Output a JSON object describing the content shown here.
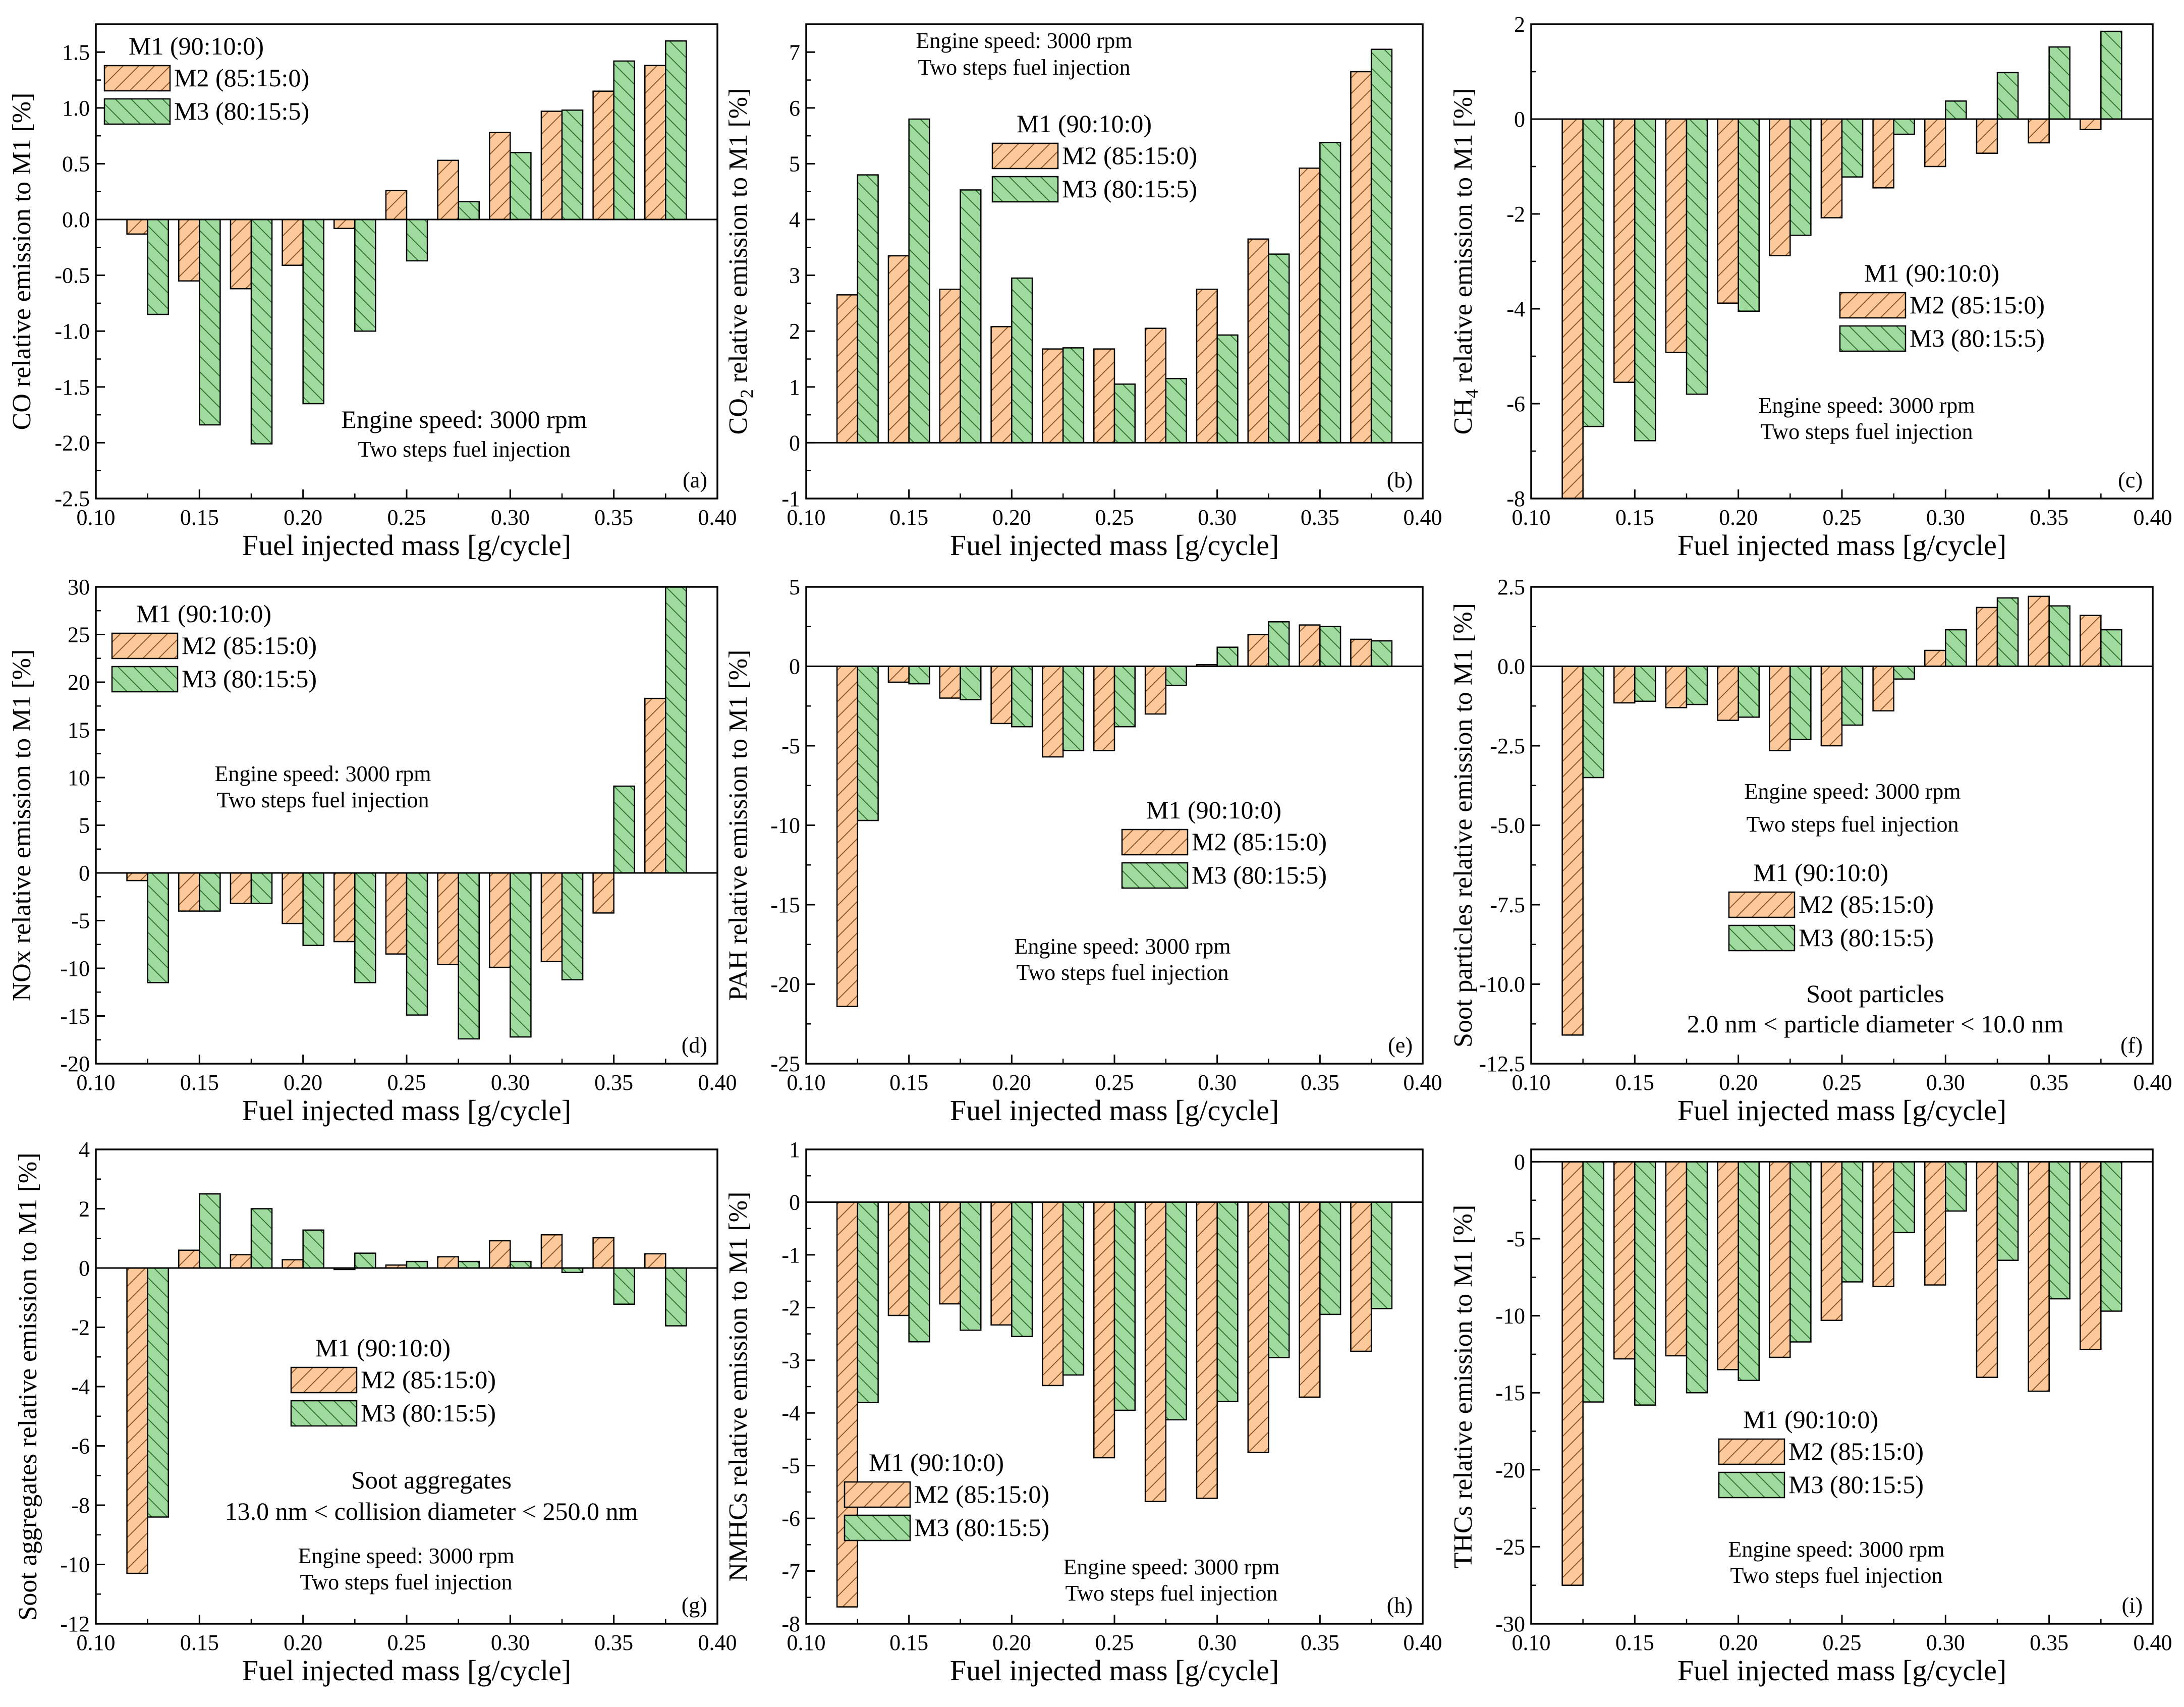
{
  "colors": {
    "m2_fill": "#fbc99a",
    "m2_hatch": "#8a4a20",
    "m3_fill": "#9fdb9f",
    "m3_hatch": "#2a6a2a",
    "axis": "#000000"
  },
  "chart_data": [
    {
      "id": "a",
      "panel_label": "(a)",
      "type": "bar",
      "xlabel": "Fuel injected mass  [g/cycle]",
      "ylabel": "CO relative emission to M1 [%]",
      "ylabel_sub": "",
      "xlim": [
        0.1,
        0.4
      ],
      "xticks": [
        "0.10",
        "0.15",
        "0.20",
        "0.25",
        "0.30",
        "0.35",
        "0.40"
      ],
      "ylim": [
        -2.5,
        1.75
      ],
      "yticks": [
        "-2.5",
        "-2.0",
        "-1.5",
        "-1.0",
        "-0.5",
        "0.0",
        "0.5",
        "1.0",
        "1.5"
      ],
      "ytick_values": [
        -2.5,
        -2.0,
        -1.5,
        -1.0,
        -0.5,
        0.0,
        0.5,
        1.0,
        1.5
      ],
      "x": [
        0.125,
        0.15,
        0.175,
        0.2,
        0.225,
        0.25,
        0.275,
        0.3,
        0.325,
        0.35,
        0.375
      ],
      "series": [
        {
          "name": "M2 (85:15:0)",
          "values": [
            -0.13,
            -0.55,
            -0.62,
            -0.41,
            -0.08,
            0.26,
            0.53,
            0.78,
            0.97,
            1.15,
            1.38
          ]
        },
        {
          "name": "M3 (80:15:5)",
          "values": [
            -0.85,
            -1.84,
            -2.01,
            -1.65,
            -1.0,
            -0.37,
            0.16,
            0.6,
            0.98,
            1.42,
            1.6
          ]
        }
      ],
      "legend": [
        "M1 (90:10:0)",
        "M2 (85:15:0)",
        "M3 (80:15:5)"
      ],
      "annotations": [
        "Engine speed: 3000 rpm",
        "Two steps fuel injection"
      ]
    },
    {
      "id": "b",
      "panel_label": "(b)",
      "type": "bar",
      "xlabel": "Fuel injected mass  [g/cycle]",
      "ylabel": "CO",
      "ylabel_sub": "2",
      "ylabel_rest": " relative emission to M1 [%]",
      "xlim": [
        0.1,
        0.4
      ],
      "xticks": [
        "0.10",
        "0.15",
        "0.20",
        "0.25",
        "0.30",
        "0.35",
        "0.40"
      ],
      "ylim": [
        -1,
        7.5
      ],
      "yticks": [
        "-1",
        "0",
        "1",
        "2",
        "3",
        "4",
        "5",
        "6",
        "7"
      ],
      "ytick_values": [
        -1,
        0,
        1,
        2,
        3,
        4,
        5,
        6,
        7
      ],
      "x": [
        0.125,
        0.15,
        0.175,
        0.2,
        0.225,
        0.25,
        0.275,
        0.3,
        0.325,
        0.35,
        0.375
      ],
      "series": [
        {
          "name": "M2 (85:15:0)",
          "values": [
            2.65,
            3.35,
            2.75,
            2.08,
            1.68,
            1.68,
            2.05,
            2.75,
            3.65,
            4.92,
            6.65
          ]
        },
        {
          "name": "M3 (80:15:5)",
          "values": [
            4.8,
            5.8,
            4.53,
            2.95,
            1.7,
            1.05,
            1.15,
            1.93,
            3.38,
            5.38,
            7.05
          ]
        }
      ],
      "legend": [
        "M1 (90:10:0)",
        "M2 (85:15:0)",
        "M3 (80:15:5)"
      ],
      "annotations": [
        "Engine speed: 3000 rpm",
        "Two steps fuel injection"
      ]
    },
    {
      "id": "c",
      "panel_label": "(c)",
      "type": "bar",
      "xlabel": "Fuel injected mass  [g/cycle]",
      "ylabel": "CH",
      "ylabel_sub": "4",
      "ylabel_rest": " relative emission to M1 [%]",
      "xlim": [
        0.1,
        0.4
      ],
      "xticks": [
        "0.10",
        "0.15",
        "0.20",
        "0.25",
        "0.30",
        "0.35",
        "0.40"
      ],
      "ylim": [
        -8,
        2
      ],
      "yticks": [
        "-8",
        "-6",
        "-4",
        "-2",
        "0",
        "2"
      ],
      "ytick_values": [
        -8,
        -6,
        -4,
        -2,
        0,
        2
      ],
      "x": [
        0.125,
        0.15,
        0.175,
        0.2,
        0.225,
        0.25,
        0.275,
        0.3,
        0.325,
        0.35,
        0.375
      ],
      "series": [
        {
          "name": "M2 (85:15:0)",
          "values": [
            -8.0,
            -5.55,
            -4.92,
            -3.88,
            -2.88,
            -2.08,
            -1.45,
            -1.0,
            -0.72,
            -0.5,
            -0.22
          ]
        },
        {
          "name": "M3 (80:15:5)",
          "values": [
            -6.48,
            -6.78,
            -5.8,
            -4.05,
            -2.45,
            -1.22,
            -0.32,
            0.38,
            0.98,
            1.52,
            1.85
          ]
        }
      ],
      "legend": [
        "M1 (90:10:0)",
        "M2 (85:15:0)",
        "M3 (80:15:5)"
      ],
      "annotations": [
        "Engine speed: 3000 rpm",
        "Two steps fuel injection"
      ]
    },
    {
      "id": "d",
      "panel_label": "(d)",
      "type": "bar",
      "xlabel": "Fuel injected mass  [g/cycle]",
      "ylabel": "NOx relative emission to M1 [%]",
      "ylabel_sub": "",
      "xlim": [
        0.1,
        0.4
      ],
      "xticks": [
        "0.10",
        "0.15",
        "0.20",
        "0.25",
        "0.30",
        "0.35",
        "0.40"
      ],
      "ylim": [
        -20,
        30
      ],
      "yticks": [
        "-20",
        "-15",
        "-10",
        "-5",
        "0",
        "5",
        "10",
        "15",
        "20",
        "25",
        "30"
      ],
      "ytick_values": [
        -20,
        -15,
        -10,
        -5,
        0,
        5,
        10,
        15,
        20,
        25,
        30
      ],
      "x": [
        0.125,
        0.15,
        0.175,
        0.2,
        0.225,
        0.25,
        0.275,
        0.3,
        0.325,
        0.35,
        0.375
      ],
      "series": [
        {
          "name": "M2 (85:15:0)",
          "values": [
            -0.8,
            -4.0,
            -3.2,
            -5.3,
            -7.2,
            -8.5,
            -9.6,
            -9.9,
            -9.3,
            -4.2,
            18.3
          ]
        },
        {
          "name": "M3 (80:15:5)",
          "values": [
            -11.5,
            -4.0,
            -3.2,
            -7.6,
            -11.5,
            -14.9,
            -17.4,
            -17.2,
            -11.2,
            9.1,
            30.0
          ]
        }
      ],
      "legend": [
        "M1 (90:10:0)",
        "M2 (85:15:0)",
        "M3 (80:15:5)"
      ],
      "annotations": [
        "Engine speed: 3000 rpm",
        "Two steps fuel injection"
      ]
    },
    {
      "id": "e",
      "panel_label": "(e)",
      "type": "bar",
      "xlabel": "Fuel injected mass  [g/cycle]",
      "ylabel": "PAH relative emission to M1 [%]",
      "ylabel_sub": "",
      "xlim": [
        0.1,
        0.4
      ],
      "xticks": [
        "0.10",
        "0.15",
        "0.20",
        "0.25",
        "0.30",
        "0.35",
        "0.40"
      ],
      "ylim": [
        -25,
        5
      ],
      "yticks": [
        "-25",
        "-20",
        "-15",
        "-10",
        "-5",
        "0",
        "5"
      ],
      "ytick_values": [
        -25,
        -20,
        -15,
        -10,
        -5,
        0,
        5
      ],
      "x": [
        0.125,
        0.15,
        0.175,
        0.2,
        0.225,
        0.25,
        0.275,
        0.3,
        0.325,
        0.35,
        0.375
      ],
      "series": [
        {
          "name": "M2 (85:15:0)",
          "values": [
            -21.4,
            -1.0,
            -2.0,
            -3.6,
            -5.7,
            -5.3,
            -3.0,
            0.1,
            2.0,
            2.6,
            1.7
          ]
        },
        {
          "name": "M3 (80:15:5)",
          "values": [
            -9.7,
            -1.1,
            -2.1,
            -3.8,
            -5.3,
            -3.8,
            -1.2,
            1.2,
            2.8,
            2.5,
            1.6
          ]
        }
      ],
      "legend": [
        "M1 (90:10:0)",
        "M2 (85:15:0)",
        "M3 (80:15:5)"
      ],
      "annotations": [
        "Engine speed: 3000 rpm",
        "Two steps fuel injection"
      ]
    },
    {
      "id": "f",
      "panel_label": "(f)",
      "type": "bar",
      "xlabel": "Fuel injected mass  [g/cycle]",
      "ylabel": "Soot particles relative emission to M1 [%]",
      "ylabel_sub": "",
      "xlim": [
        0.1,
        0.4
      ],
      "xticks": [
        "0.10",
        "0.15",
        "0.20",
        "0.25",
        "0.30",
        "0.35",
        "0.40"
      ],
      "ylim": [
        -12.5,
        2.5
      ],
      "yticks": [
        "-12.5",
        "-10.0",
        "-7.5",
        "-5.0",
        "-2.5",
        "0.0",
        "2.5"
      ],
      "ytick_values": [
        -12.5,
        -10.0,
        -7.5,
        -5.0,
        -2.5,
        0.0,
        2.5
      ],
      "x": [
        0.125,
        0.15,
        0.175,
        0.2,
        0.225,
        0.25,
        0.275,
        0.3,
        0.325,
        0.35,
        0.375
      ],
      "series": [
        {
          "name": "M2 (85:15:0)",
          "values": [
            -11.6,
            -1.15,
            -1.3,
            -1.7,
            -2.65,
            -2.5,
            -1.4,
            0.5,
            1.85,
            2.2,
            1.6
          ]
        },
        {
          "name": "M3 (80:15:5)",
          "values": [
            -3.5,
            -1.1,
            -1.2,
            -1.6,
            -2.3,
            -1.85,
            -0.4,
            1.15,
            2.15,
            1.9,
            1.15
          ]
        }
      ],
      "legend": [
        "M1 (90:10:0)",
        "M2 (85:15:0)",
        "M3 (80:15:5)"
      ],
      "annotations": [
        "Engine speed: 3000 rpm",
        "Two steps fuel injection",
        "Soot particles",
        "2.0 nm < particle diameter < 10.0 nm"
      ]
    },
    {
      "id": "g",
      "panel_label": "(g)",
      "type": "bar",
      "xlabel": "Fuel injected mass  [g/cycle]",
      "ylabel": "Soot aggregates relative emission to M1 [%]",
      "ylabel_sub": "",
      "xlim": [
        0.1,
        0.4
      ],
      "xticks": [
        "0.10",
        "0.15",
        "0.20",
        "0.25",
        "0.30",
        "0.35",
        "0.40"
      ],
      "ylim": [
        -12,
        4
      ],
      "yticks": [
        "-12",
        "-10",
        "-8",
        "-6",
        "-4",
        "-2",
        "0",
        "2",
        "4"
      ],
      "ytick_values": [
        -12,
        -10,
        -8,
        -6,
        -4,
        -2,
        0,
        2,
        4
      ],
      "x": [
        0.125,
        0.15,
        0.175,
        0.2,
        0.225,
        0.25,
        0.275,
        0.3,
        0.325,
        0.35,
        0.375
      ],
      "series": [
        {
          "name": "M2 (85:15:0)",
          "values": [
            -10.3,
            0.6,
            0.45,
            0.28,
            -0.05,
            0.1,
            0.38,
            0.92,
            1.12,
            1.02,
            0.48
          ]
        },
        {
          "name": "M3 (80:15:5)",
          "values": [
            -8.4,
            2.5,
            2.0,
            1.28,
            0.5,
            0.22,
            0.22,
            0.22,
            -0.15,
            -1.22,
            -1.95
          ]
        }
      ],
      "legend": [
        "M1 (90:10:0)",
        "M2 (85:15:0)",
        "M3 (80:15:5)"
      ],
      "annotations": [
        "Soot aggregates",
        "13.0 nm < collision diameter < 250.0 nm",
        "Engine speed: 3000 rpm",
        "Two steps fuel injection"
      ]
    },
    {
      "id": "h",
      "panel_label": "(h)",
      "type": "bar",
      "xlabel": "Fuel injected mass  [g/cycle]",
      "ylabel": "NMHCs relative emission to M1 [%]",
      "ylabel_sub": "",
      "xlim": [
        0.1,
        0.4
      ],
      "xticks": [
        "0.10",
        "0.15",
        "0.20",
        "0.25",
        "0.30",
        "0.35",
        "0.40"
      ],
      "ylim": [
        -8,
        1
      ],
      "yticks": [
        "-8",
        "-7",
        "-6",
        "-5",
        "-4",
        "-3",
        "-2",
        "-1",
        "0",
        "1"
      ],
      "ytick_values": [
        -8,
        -7,
        -6,
        -5,
        -4,
        -3,
        -2,
        -1,
        0,
        1
      ],
      "x": [
        0.125,
        0.15,
        0.175,
        0.2,
        0.225,
        0.25,
        0.275,
        0.3,
        0.325,
        0.35,
        0.375
      ],
      "series": [
        {
          "name": "M2 (85:15:0)",
          "values": [
            -7.68,
            -2.15,
            -1.93,
            -2.33,
            -3.48,
            -4.85,
            -5.68,
            -5.62,
            -4.75,
            -3.7,
            -2.83
          ]
        },
        {
          "name": "M3 (80:15:5)",
          "values": [
            -3.8,
            -2.65,
            -2.43,
            -2.55,
            -3.28,
            -3.95,
            -4.13,
            -3.78,
            -2.95,
            -2.13,
            -2.02
          ]
        }
      ],
      "legend": [
        "M1 (90:10:0)",
        "M2 (85:15:0)",
        "M3 (80:15:5)"
      ],
      "annotations": [
        "Engine speed: 3000 rpm",
        "Two steps fuel injection"
      ]
    },
    {
      "id": "i",
      "panel_label": "(i)",
      "type": "bar",
      "xlabel": "Fuel injected mass  [g/cycle]",
      "ylabel": "THCs relative emission to M1 [%]",
      "ylabel_sub": "",
      "xlim": [
        0.1,
        0.4
      ],
      "xticks": [
        "0.10",
        "0.15",
        "0.20",
        "0.25",
        "0.30",
        "0.35",
        "0.40"
      ],
      "ylim": [
        -30,
        0.8
      ],
      "yticks": [
        "-30",
        "-25",
        "-20",
        "-15",
        "-10",
        "-5",
        "0"
      ],
      "ytick_values": [
        -30,
        -25,
        -20,
        -15,
        -10,
        -5,
        0
      ],
      "x": [
        0.125,
        0.15,
        0.175,
        0.2,
        0.225,
        0.25,
        0.275,
        0.3,
        0.325,
        0.35,
        0.375
      ],
      "series": [
        {
          "name": "M2 (85:15:0)",
          "values": [
            -27.5,
            -12.8,
            -12.6,
            -13.5,
            -12.7,
            -10.3,
            -8.1,
            -8.0,
            -14.0,
            -14.9,
            -12.2
          ]
        },
        {
          "name": "M3 (80:15:5)",
          "values": [
            -15.6,
            -15.8,
            -15.0,
            -14.2,
            -11.7,
            -7.8,
            -4.6,
            -3.2,
            -6.4,
            -8.9,
            -9.7
          ]
        }
      ],
      "legend": [
        "M1 (90:10:0)",
        "M2 (85:15:0)",
        "M3 (80:15:5)"
      ],
      "annotations": [
        "Engine speed: 3000 rpm",
        "Two steps fuel injection"
      ]
    }
  ]
}
